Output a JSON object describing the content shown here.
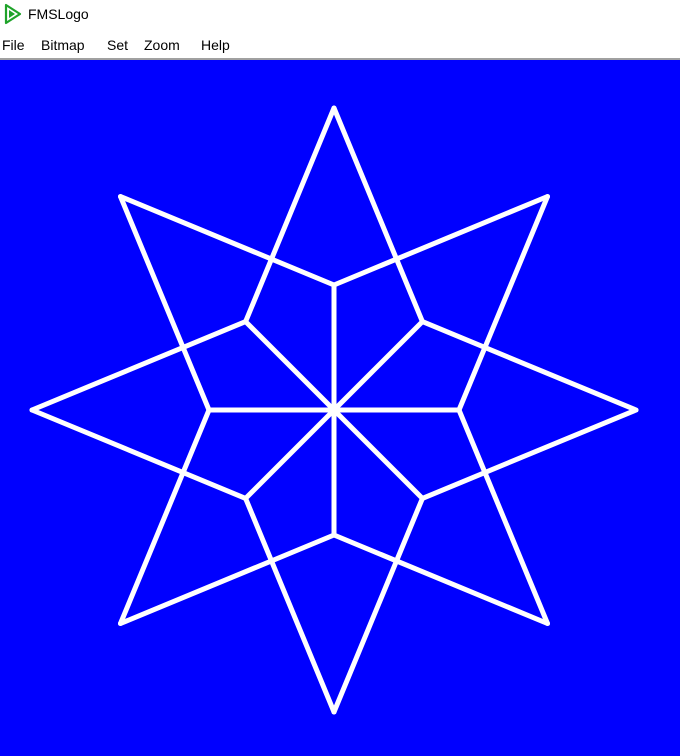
{
  "app": {
    "title": "FMSLogo",
    "icon": "fmslogo-play-icon",
    "icon_color": "#1fa32a"
  },
  "menu": {
    "items": [
      {
        "label": "File"
      },
      {
        "label": "Bitmap"
      },
      {
        "label": "Set"
      },
      {
        "label": "Zoom"
      },
      {
        "label": "Help"
      }
    ]
  },
  "canvas": {
    "background_color": "#0000ff",
    "pen_color": "#ffffff",
    "drawing": "eight-pointed-star"
  }
}
